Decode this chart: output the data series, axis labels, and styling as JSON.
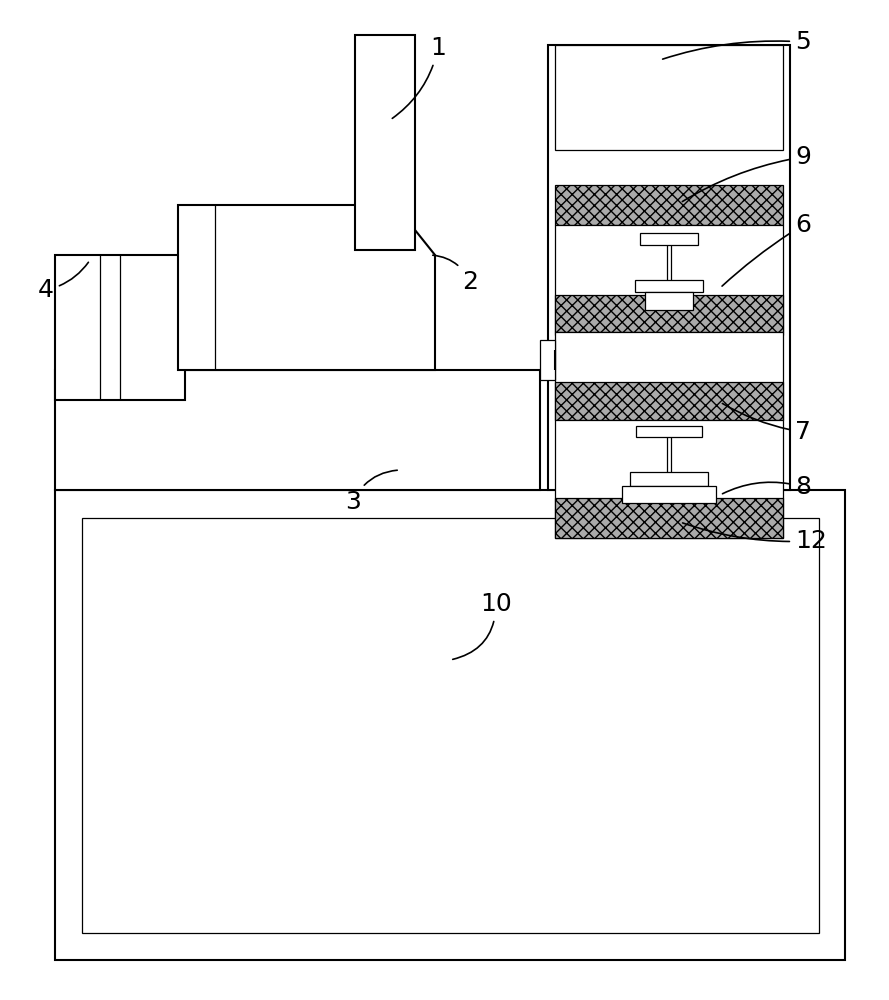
{
  "bg_color": "#ffffff",
  "lw": 1.5,
  "tlw": 0.9,
  "fig_width": 8.89,
  "fig_height": 10.0
}
